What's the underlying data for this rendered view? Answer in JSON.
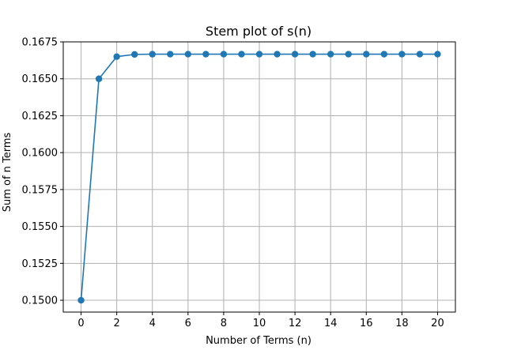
{
  "chart_data": {
    "type": "line",
    "title": "Stem plot of s(n)",
    "xlabel": "Number of Terms (n)",
    "ylabel": "Sum of n Terms",
    "x": [
      0,
      1,
      2,
      3,
      4,
      5,
      6,
      7,
      8,
      9,
      10,
      11,
      12,
      13,
      14,
      15,
      16,
      17,
      18,
      19,
      20
    ],
    "series": [
      {
        "values": [
          0.15,
          0.165,
          0.1665,
          0.16665,
          0.166665,
          0.1666665,
          0.16666665,
          0.166666665,
          0.1666666665,
          0.16666666665,
          0.166666666665,
          0.1666666666665,
          0.16666666666665,
          0.166666666666665,
          0.1666666666666665,
          0.16666666666666666,
          0.16666666666666666,
          0.16666666666666666,
          0.16666666666666666,
          0.16666666666666666,
          0.16666666666666666
        ],
        "color": "#1f77b4",
        "marker": "circle"
      }
    ],
    "xlim": [
      -1,
      21
    ],
    "ylim": [
      0.1492,
      0.1675
    ],
    "xticks": [
      0,
      2,
      4,
      6,
      8,
      10,
      12,
      14,
      16,
      18,
      20
    ],
    "yticks": [
      0.15,
      0.1525,
      0.155,
      0.1575,
      0.16,
      0.1625,
      0.165,
      0.1675
    ],
    "xtick_labels": [
      "0",
      "2",
      "4",
      "6",
      "8",
      "10",
      "12",
      "14",
      "16",
      "18",
      "20"
    ],
    "ytick_labels": [
      "0.1500",
      "0.1525",
      "0.1550",
      "0.1575",
      "0.1600",
      "0.1625",
      "0.1650",
      "0.1675"
    ],
    "grid": true,
    "grid_color": "#b0b0b0",
    "legend": false
  }
}
